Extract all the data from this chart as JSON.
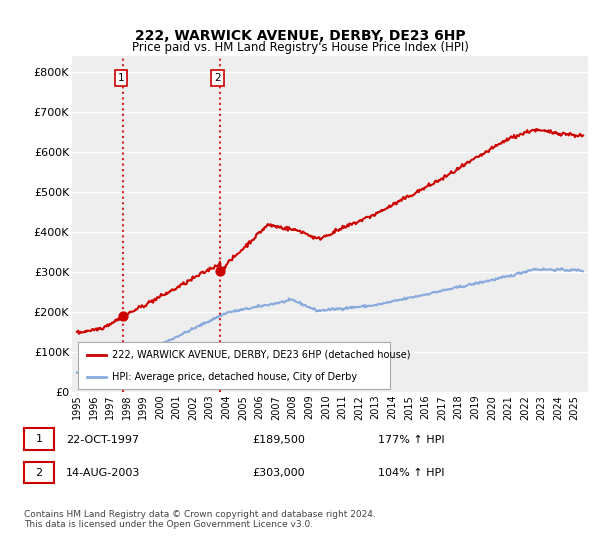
{
  "title": "222, WARWICK AVENUE, DERBY, DE23 6HP",
  "subtitle": "Price paid vs. HM Land Registry's House Price Index (HPI)",
  "footer": "Contains HM Land Registry data © Crown copyright and database right 2024.\nThis data is licensed under the Open Government Licence v3.0.",
  "legend_line1": "222, WARWICK AVENUE, DERBY, DE23 6HP (detached house)",
  "legend_line2": "HPI: Average price, detached house, City of Derby",
  "sale1_label": "1",
  "sale1_date": "22-OCT-1997",
  "sale1_price": "£189,500",
  "sale1_hpi": "177% ↑ HPI",
  "sale2_label": "2",
  "sale2_date": "14-AUG-2003",
  "sale2_price": "£303,000",
  "sale2_hpi": "104% ↑ HPI",
  "sale1_year": 1997.8,
  "sale1_value": 189500,
  "sale2_year": 2003.62,
  "sale2_value": 303000,
  "dashed_x1": 1997.8,
  "dashed_x2": 2003.62,
  "ylim": [
    0,
    840000
  ],
  "xlim_left": 1994.7,
  "xlim_right": 2025.8,
  "price_line_color": "#cc0000",
  "hpi_line_color": "#88aadd",
  "dashed_line_color": "#cc0000",
  "plot_bg_color": "#eeeeee",
  "grid_color": "#ffffff",
  "label_box_color": "#cc0000",
  "ytick_labels": [
    "£0",
    "£100K",
    "£200K",
    "£300K",
    "£400K",
    "£500K",
    "£600K",
    "£700K",
    "£800K"
  ],
  "ytick_values": [
    0,
    100000,
    200000,
    300000,
    400000,
    500000,
    600000,
    700000,
    800000
  ],
  "xtick_years": [
    1995,
    1996,
    1997,
    1998,
    1999,
    2000,
    2001,
    2002,
    2003,
    2004,
    2005,
    2006,
    2007,
    2008,
    2009,
    2010,
    2011,
    2012,
    2013,
    2014,
    2015,
    2016,
    2017,
    2018,
    2019,
    2020,
    2021,
    2022,
    2023,
    2024,
    2025
  ]
}
